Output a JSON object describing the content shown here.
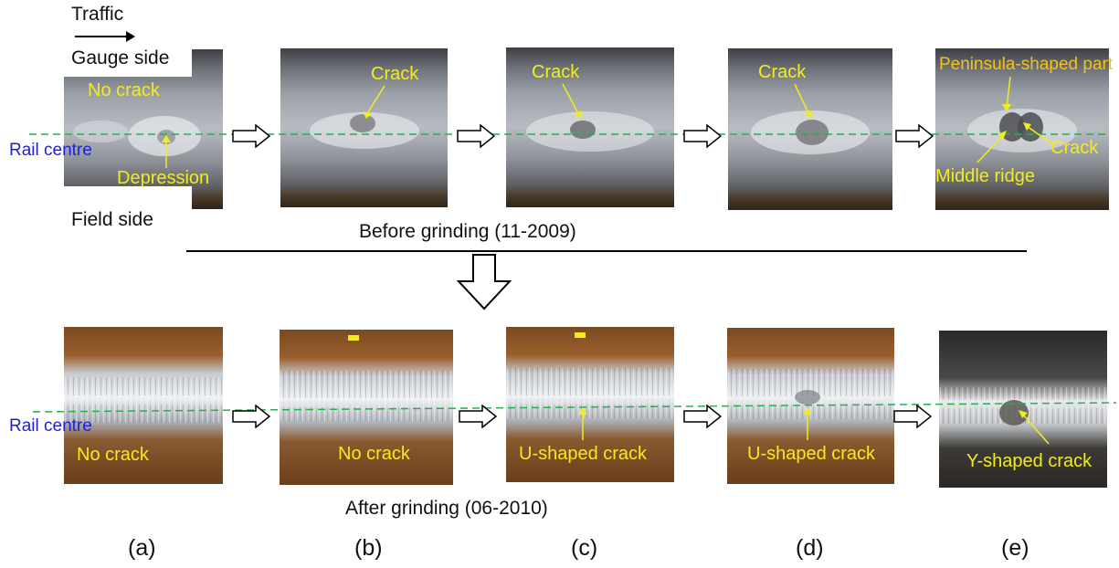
{
  "header": {
    "traffic": "Traffic",
    "gauge_side": "Gauge side",
    "field_side": "Field side"
  },
  "rows": {
    "before": {
      "caption": "Before grinding (11-2009)",
      "rail_centre": "Rail centre"
    },
    "after": {
      "caption": "After grinding (06-2010)",
      "rail_centre": "Rail centre"
    }
  },
  "before_annotations": {
    "a_no_crack": "No crack",
    "a_depression": "Depression",
    "b_crack": "Crack",
    "c_crack": "Crack",
    "d_crack": "Crack",
    "e_peninsula": "Peninsula-shaped part",
    "e_crack": "Crack",
    "e_middle_ridge": "Middle ridge"
  },
  "after_annotations": {
    "a": "No crack",
    "b": "No crack",
    "c": "U-shaped crack",
    "d": "U-shaped crack",
    "e": "Y-shaped crack"
  },
  "panel_labels": [
    "(a)",
    "(b)",
    "(c)",
    "(d)",
    "(e)"
  ],
  "colors": {
    "annotation": "#f3ec1c",
    "rail_centre_label": "#1f1fd8",
    "centre_line": "#22b14c"
  }
}
